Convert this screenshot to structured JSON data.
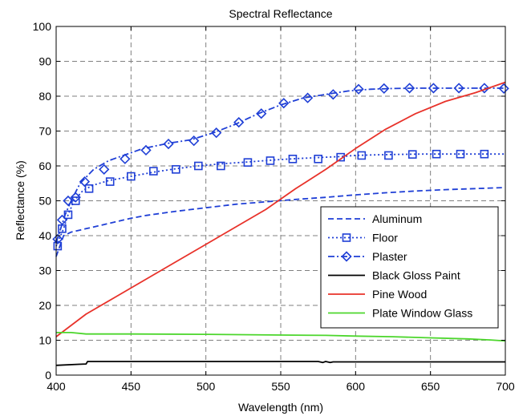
{
  "chart_data": {
    "type": "line",
    "title": "Spectral Reflectance",
    "xlabel": "Wavelength (nm)",
    "ylabel": "Reflectance (%)",
    "xlim": [
      400,
      700
    ],
    "ylim": [
      0,
      100
    ],
    "xticks": [
      400,
      450,
      500,
      550,
      600,
      650,
      700
    ],
    "yticks": [
      0,
      10,
      20,
      30,
      40,
      50,
      60,
      70,
      80,
      90,
      100
    ],
    "grid": true,
    "legend_position": "lower-right",
    "series": [
      {
        "name": "Aluminum",
        "color": "#1f3fd6",
        "line_style": "dashed",
        "marker": "none",
        "x": [
          400,
          405,
          410,
          420,
          430,
          440,
          450,
          460,
          470,
          480,
          490,
          500,
          520,
          540,
          560,
          580,
          600,
          620,
          640,
          660,
          680,
          700
        ],
        "y": [
          34,
          40,
          41,
          42,
          43,
          44,
          45,
          45.8,
          46.4,
          47,
          47.5,
          48,
          49,
          49.7,
          50.4,
          51,
          51.7,
          52.3,
          52.8,
          53.2,
          53.5,
          53.8
        ]
      },
      {
        "name": "Floor",
        "color": "#1f3fd6",
        "line_style": "dotted",
        "marker": "square",
        "x": [
          400,
          402,
          405,
          408,
          412,
          418,
          425,
          435,
          450,
          465,
          480,
          495,
          510,
          530,
          545,
          560,
          575,
          590,
          600,
          615,
          630,
          645,
          660,
          675,
          690,
          700
        ],
        "y": [
          37,
          39,
          42,
          46,
          50,
          53,
          54.5,
          55.8,
          57,
          58.2,
          59.2,
          60,
          60.6,
          61.2,
          61.7,
          62.1,
          62.4,
          62.7,
          63,
          63.2,
          63.3,
          63.4,
          63.4,
          63.4,
          63.4,
          63.4
        ],
        "marker_x": [
          401,
          404,
          408,
          413,
          422,
          436,
          450,
          465,
          480,
          495,
          510,
          528,
          543,
          558,
          575,
          590,
          604,
          622,
          638,
          654,
          670,
          686
        ],
        "marker_y": [
          37,
          42,
          46,
          50,
          53.5,
          55.5,
          57,
          58.5,
          59,
          60,
          60,
          61,
          61.5,
          62,
          62,
          62.5,
          63,
          63,
          63.3,
          63.4,
          63.4,
          63.4
        ]
      },
      {
        "name": "Plaster",
        "color": "#1f3fd6",
        "line_style": "dashdot",
        "marker": "diamond",
        "x": [
          400,
          403,
          406,
          410,
          416,
          425,
          435,
          445,
          458,
          475,
          490,
          505,
          520,
          535,
          550,
          565,
          580,
          595,
          610,
          625,
          640,
          655,
          670,
          685,
          700
        ],
        "y": [
          38,
          42,
          46,
          50,
          55,
          59,
          61.5,
          63,
          65,
          66.5,
          67.5,
          69.5,
          72,
          75,
          77.5,
          79.5,
          80.5,
          81.5,
          82,
          82.2,
          82.3,
          82.3,
          82.3,
          82.3,
          82.3
        ],
        "marker_x": [
          401,
          404,
          408,
          413,
          419,
          432,
          446,
          460,
          475,
          492,
          507,
          522,
          537,
          552,
          568,
          585,
          602,
          619,
          636,
          652,
          669,
          686,
          699
        ],
        "marker_y": [
          39,
          44.5,
          50,
          51,
          55.5,
          59,
          62,
          64.5,
          66.3,
          67.2,
          69.5,
          72.5,
          75,
          78,
          79.5,
          80.5,
          82,
          82.2,
          82.3,
          82.3,
          82.3,
          82.3,
          82.2
        ]
      },
      {
        "name": "Black Gloss Paint",
        "color": "#000000",
        "line_style": "solid",
        "marker": "none",
        "x": [
          400,
          415,
          420,
          421,
          450,
          500,
          550,
          575,
          578,
          580,
          583,
          585,
          600,
          650,
          700
        ],
        "y": [
          2.8,
          3.1,
          3.2,
          3.9,
          3.9,
          3.9,
          3.9,
          3.9,
          3.6,
          3.9,
          3.6,
          3.8,
          3.8,
          3.8,
          3.8
        ]
      },
      {
        "name": "Pine Wood",
        "color": "#e8322a",
        "line_style": "solid",
        "marker": "none",
        "x": [
          400,
          420,
          440,
          460,
          480,
          500,
          520,
          540,
          560,
          580,
          600,
          620,
          640,
          660,
          680,
          700
        ],
        "y": [
          11,
          17.5,
          22.5,
          27.5,
          32.5,
          37.5,
          42.5,
          47.5,
          53.5,
          59,
          65,
          70.5,
          75,
          78.5,
          81,
          84
        ]
      },
      {
        "name": "Plate Window Glass",
        "color": "#4cd62c",
        "line_style": "solid",
        "marker": "none",
        "x": [
          400,
          410,
          420,
          450,
          500,
          550,
          580,
          600,
          625,
          650,
          675,
          690,
          700
        ],
        "y": [
          12.2,
          12.2,
          11.8,
          11.8,
          11.7,
          11.5,
          11.4,
          11.2,
          11,
          10.7,
          10.4,
          10.1,
          9.8
        ]
      }
    ]
  }
}
